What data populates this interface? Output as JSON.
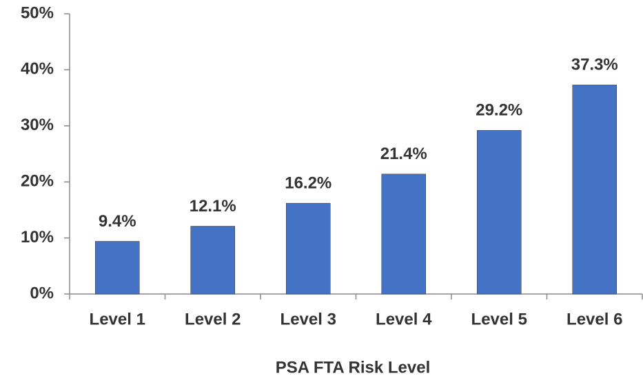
{
  "chart_data": {
    "type": "bar",
    "x_label": "PSA FTA Risk Level",
    "categories": [
      "Level 1",
      "Level 2",
      "Level 3",
      "Level 4",
      "Level 5",
      "Level 6"
    ],
    "values": [
      9.4,
      12.1,
      16.2,
      21.4,
      29.2,
      37.3
    ],
    "value_labels": [
      "9.4%",
      "12.1%",
      "16.2%",
      "21.4%",
      "29.2%",
      "37.3%"
    ],
    "color": "#4472c4",
    "ylim": [
      0,
      50
    ],
    "yticks": [
      {
        "value": 0,
        "label": "0%"
      },
      {
        "value": 10,
        "label": "10%"
      },
      {
        "value": 20,
        "label": "20%"
      },
      {
        "value": 30,
        "label": "30%"
      },
      {
        "value": 40,
        "label": "40%"
      },
      {
        "value": 50,
        "label": "50%"
      }
    ],
    "grid": false
  }
}
